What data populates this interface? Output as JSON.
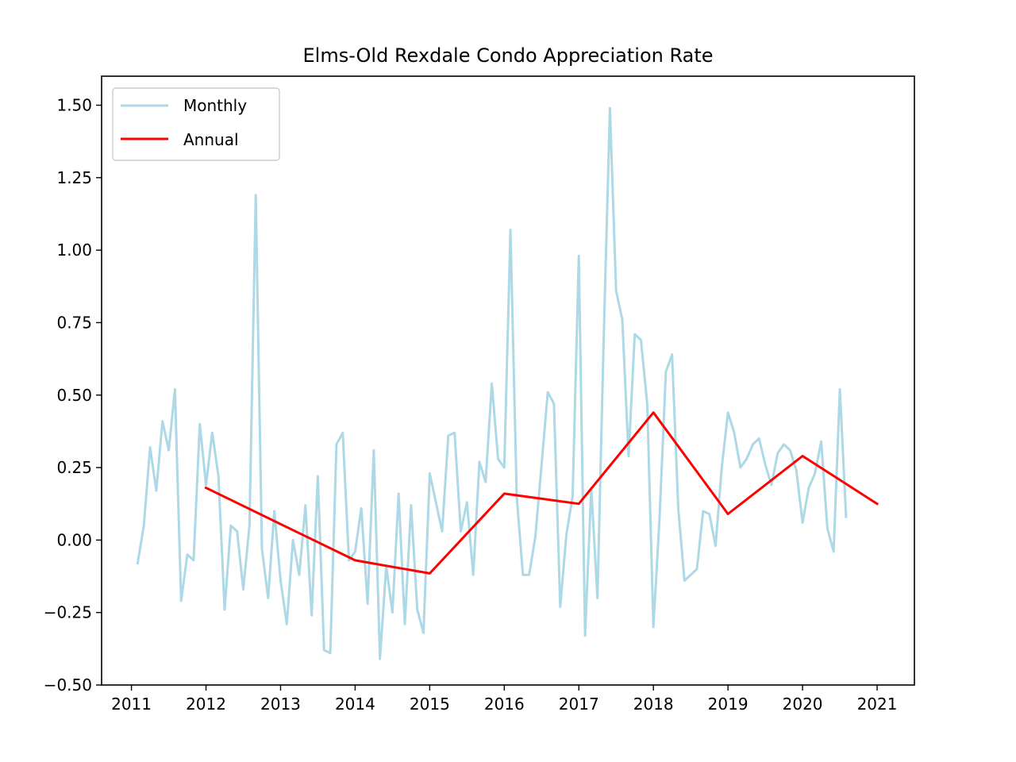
{
  "chart_data": {
    "type": "line",
    "title": "Elms-Old Rexdale Condo Appreciation Rate",
    "xlabel": "",
    "ylabel": "",
    "xlim": [
      2010.6,
      2021.5
    ],
    "ylim": [
      -0.5,
      1.6
    ],
    "x_ticks": [
      "2011",
      "2012",
      "2013",
      "2014",
      "2015",
      "2016",
      "2017",
      "2018",
      "2019",
      "2020",
      "2021"
    ],
    "y_ticks": [
      "−0.50",
      "−0.25",
      "0.00",
      "0.25",
      "0.50",
      "0.75",
      "1.00",
      "1.25",
      "1.50"
    ],
    "grid": false,
    "legend_position": "top-left",
    "series": [
      {
        "name": "Monthly",
        "color": "#add8e6",
        "start_year": 2011,
        "start_month": 2,
        "values": [
          -0.08,
          0.05,
          0.32,
          0.17,
          0.41,
          0.31,
          0.52,
          -0.21,
          -0.05,
          -0.07,
          0.4,
          0.19,
          0.37,
          0.22,
          -0.24,
          0.05,
          0.03,
          -0.17,
          0.05,
          1.19,
          -0.03,
          -0.2,
          0.1,
          -0.14,
          -0.29,
          0.0,
          -0.12,
          0.12,
          -0.26,
          0.22,
          -0.38,
          -0.39,
          0.33,
          0.37,
          -0.07,
          -0.04,
          0.11,
          -0.22,
          0.31,
          -0.41,
          -0.09,
          -0.25,
          0.16,
          -0.29,
          0.12,
          -0.24,
          -0.32,
          0.23,
          0.13,
          0.03,
          0.36,
          0.37,
          0.03,
          0.13,
          -0.12,
          0.27,
          0.2,
          0.54,
          0.28,
          0.25,
          1.07,
          0.15,
          -0.12,
          -0.12,
          0.01,
          0.26,
          0.51,
          0.47,
          -0.23,
          0.02,
          0.15,
          0.98,
          -0.33,
          0.18,
          -0.2,
          0.7,
          1.49,
          0.86,
          0.76,
          0.29,
          0.71,
          0.69,
          0.47,
          -0.3,
          0.08,
          0.58,
          0.64,
          0.11,
          -0.14,
          -0.12,
          -0.1,
          0.1,
          0.09,
          -0.02,
          0.25,
          0.44,
          0.37,
          0.25,
          0.28,
          0.33,
          0.35,
          0.26,
          0.19,
          0.3,
          0.33,
          0.31,
          0.24,
          0.06,
          0.18,
          0.23,
          0.34,
          0.04,
          -0.04,
          0.52,
          0.08
        ]
      },
      {
        "name": "Annual",
        "color": "#ff0000",
        "x": [
          2012,
          2014,
          2015,
          2016,
          2017,
          2018,
          2019,
          2020,
          2021
        ],
        "values": [
          0.18,
          -0.07,
          -0.115,
          0.16,
          0.125,
          0.44,
          0.09,
          0.29,
          0.125
        ]
      }
    ]
  }
}
